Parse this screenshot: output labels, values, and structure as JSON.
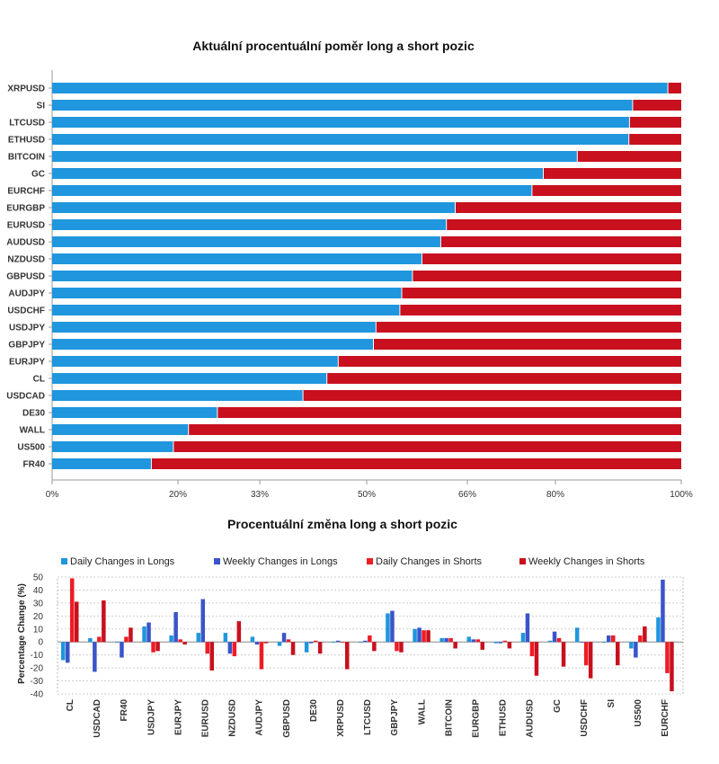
{
  "chart_data": [
    {
      "type": "bar",
      "orientation": "horizontal",
      "stacked": true,
      "title": "Aktuální procentuální poměr long a short pozic",
      "categories": [
        "XRPUSD",
        "SI",
        "LTCUSD",
        "ETHUSD",
        "BITCOIN",
        "GC",
        "EURCHF",
        "EURGBP",
        "EURUSD",
        "AUDUSD",
        "NZDUSD",
        "GBPUSD",
        "AUDJPY",
        "USDCHF",
        "USDJPY",
        "GBPJPY",
        "EURJPY",
        "CL",
        "USDCAD",
        "DE30",
        "WALL",
        "US500",
        "FR40"
      ],
      "series": [
        {
          "key": "long",
          "values": [
            97.8,
            92.2,
            91.7,
            91.6,
            83.4,
            78.0,
            76.2,
            64.0,
            62.6,
            61.7,
            58.7,
            57.2,
            55.5,
            55.2,
            51.4,
            51.0,
            45.4,
            43.6,
            39.8,
            26.2,
            21.6,
            19.2,
            15.7
          ],
          "color": "#1f96dd"
        },
        {
          "key": "short",
          "values": [
            2.2,
            7.8,
            8.3,
            8.4,
            16.6,
            22.0,
            23.8,
            36.0,
            37.4,
            38.3,
            41.3,
            42.8,
            44.5,
            44.8,
            48.6,
            49.0,
            54.6,
            56.4,
            60.2,
            73.8,
            78.4,
            80.8,
            84.3
          ],
          "color": "#c8101e"
        }
      ],
      "xlim": [
        0,
        100
      ],
      "xticks": [
        {
          "value": 0,
          "label": "0%"
        },
        {
          "value": 20,
          "label": "20%"
        },
        {
          "value": 33,
          "label": "33%"
        },
        {
          "value": 50,
          "label": "50%"
        },
        {
          "value": 66,
          "label": "66%"
        },
        {
          "value": 80,
          "label": "80%"
        },
        {
          "value": 100,
          "label": "100%"
        }
      ]
    },
    {
      "type": "bar",
      "title": "Procentuální změna long a short pozic",
      "ylabel": "Percentage Change (%)",
      "ylim": [
        -40,
        50
      ],
      "yticks": [
        -40,
        -30,
        -20,
        -10,
        0,
        10,
        20,
        30,
        40,
        50
      ],
      "grid": true,
      "legend": "top",
      "categories": [
        "CL",
        "USDCAD",
        "FR40",
        "USDJPY",
        "EURJPY",
        "EURUSD",
        "NZDUSD",
        "AUDJPY",
        "GBPUSD",
        "DE30",
        "XRPUSD",
        "LTCUSD",
        "GBPJPY",
        "WALL",
        "BITCOIN",
        "EURGBP",
        "ETHUSD",
        "AUDUSD",
        "GC",
        "USDCHF",
        "SI",
        "US500",
        "EURCHF"
      ],
      "series": [
        {
          "name": "Daily Changes in Longs",
          "color": "#1f96dd",
          "values": [
            -14,
            3,
            0,
            12,
            5,
            7,
            7,
            4,
            -3,
            -8,
            0,
            0,
            22,
            10,
            3,
            4,
            -1,
            7,
            1,
            11,
            0,
            -5,
            19
          ]
        },
        {
          "name": "Weekly Changes in Longs",
          "color": "#3a55c9",
          "values": [
            -16,
            -23,
            -12,
            15,
            23,
            33,
            -9,
            -2,
            7,
            -1,
            1,
            1,
            24,
            11,
            3,
            2,
            -1,
            22,
            8,
            0,
            5,
            -12,
            48
          ]
        },
        {
          "name": "Daily Changes in Shorts",
          "color": "#ee1c25",
          "values": [
            49,
            4,
            4,
            -8,
            2,
            -9,
            -11,
            -21,
            2,
            1,
            0,
            5,
            -7,
            9,
            3,
            2,
            1,
            -11,
            3,
            -18,
            5,
            5,
            -24
          ]
        },
        {
          "name": "Weekly Changes in Shorts",
          "color": "#c8101e",
          "values": [
            31,
            32,
            11,
            -7,
            -2,
            -22,
            16,
            -1,
            -10,
            -9,
            -21,
            -7,
            -8,
            9,
            -5,
            -6,
            -5,
            -26,
            -19,
            -28,
            -18,
            12,
            -38
          ]
        }
      ]
    }
  ]
}
